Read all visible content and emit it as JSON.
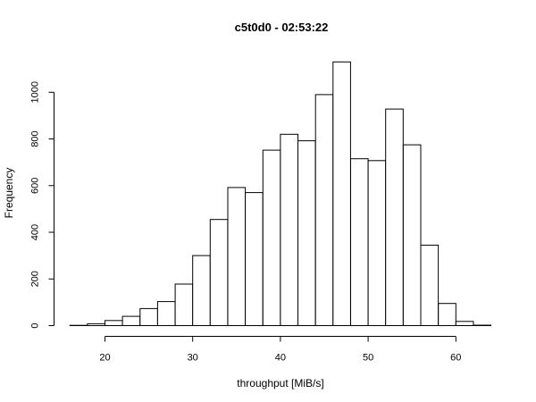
{
  "chart_data": {
    "type": "bar",
    "title": "c5t0d0 - 02:53:22",
    "xlabel": "throughput [MiB/s]",
    "ylabel": "Frequency",
    "bin_edges": [
      16,
      18,
      20,
      22,
      24,
      26,
      28,
      30,
      32,
      34,
      36,
      38,
      40,
      42,
      44,
      46,
      48,
      50,
      52,
      54,
      56,
      58,
      60,
      62,
      64
    ],
    "values": [
      1,
      8,
      22,
      40,
      73,
      103,
      178,
      300,
      455,
      592,
      570,
      752,
      820,
      792,
      990,
      1130,
      715,
      707,
      928,
      775,
      345,
      95,
      18,
      2
    ],
    "xlim": [
      16,
      64
    ],
    "ylim": [
      0,
      1150
    ],
    "xticks": [
      20,
      30,
      40,
      50,
      60
    ],
    "yticks": [
      0,
      200,
      400,
      600,
      800,
      1000
    ],
    "grid": false,
    "legend": "none"
  }
}
